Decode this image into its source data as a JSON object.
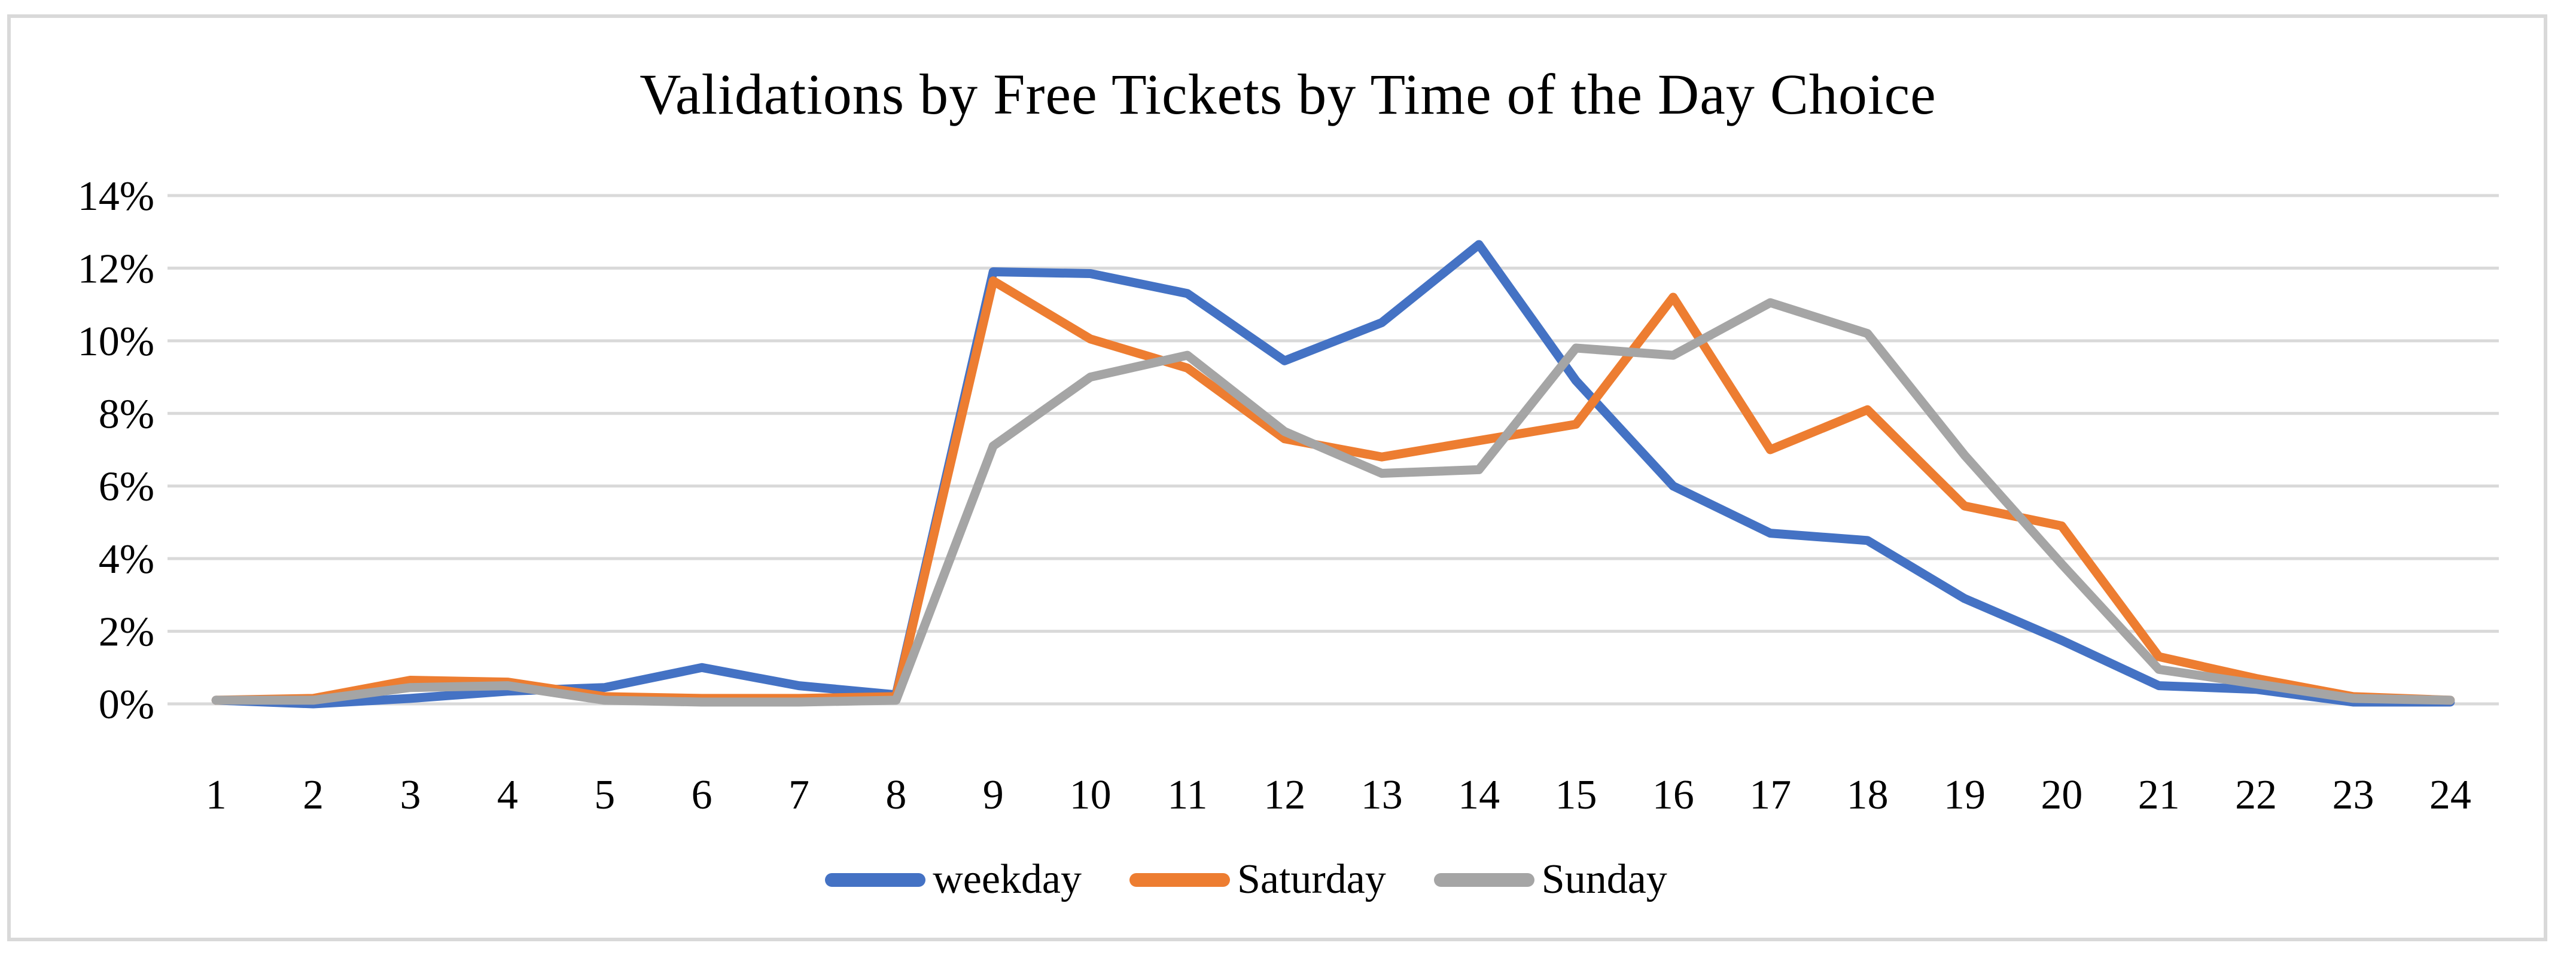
{
  "page": {
    "background": "#FFFFFF",
    "frame_border_color": "#D9D9D9"
  },
  "chart_data": {
    "type": "line",
    "title": "Validations by Free Tickets by Time of the Day Choice",
    "xlabel": "",
    "ylabel": "",
    "categories": [
      "1",
      "2",
      "3",
      "4",
      "5",
      "6",
      "7",
      "8",
      "9",
      "10",
      "11",
      "12",
      "13",
      "14",
      "15",
      "16",
      "17",
      "18",
      "19",
      "20",
      "21",
      "22",
      "23",
      "24"
    ],
    "ylim": [
      0,
      14
    ],
    "yticks": [
      {
        "v": 0,
        "label": "0%"
      },
      {
        "v": 2,
        "label": "2%"
      },
      {
        "v": 4,
        "label": "4%"
      },
      {
        "v": 6,
        "label": "6%"
      },
      {
        "v": 8,
        "label": "8%"
      },
      {
        "v": 10,
        "label": "10%"
      },
      {
        "v": 12,
        "label": "12%"
      },
      {
        "v": 14,
        "label": "14%"
      }
    ],
    "grid": true,
    "gridline_color": "#D9D9D9",
    "legend_position": "bottom",
    "series": [
      {
        "name": "weekday",
        "color": "#4472C4",
        "values": [
          0.1,
          0.0,
          0.15,
          0.35,
          0.45,
          1.0,
          0.5,
          0.25,
          11.9,
          11.85,
          11.3,
          9.45,
          10.5,
          12.65,
          8.9,
          6.0,
          4.7,
          4.5,
          2.9,
          1.75,
          0.5,
          0.4,
          0.05,
          0.05
        ]
      },
      {
        "name": "Saturday",
        "color": "#ED7D31",
        "values": [
          0.1,
          0.15,
          0.65,
          0.6,
          0.2,
          0.15,
          0.15,
          0.2,
          11.65,
          10.05,
          9.25,
          7.3,
          6.8,
          7.25,
          7.7,
          11.2,
          7.0,
          8.1,
          5.45,
          4.9,
          1.3,
          0.7,
          0.2,
          0.1
        ]
      },
      {
        "name": "Sunday",
        "color": "#A5A5A5",
        "values": [
          0.1,
          0.1,
          0.45,
          0.5,
          0.1,
          0.05,
          0.05,
          0.1,
          7.1,
          9.0,
          9.6,
          7.5,
          6.35,
          6.45,
          9.8,
          9.6,
          11.05,
          10.2,
          6.85,
          3.85,
          0.95,
          0.55,
          0.15,
          0.1
        ]
      }
    ]
  }
}
